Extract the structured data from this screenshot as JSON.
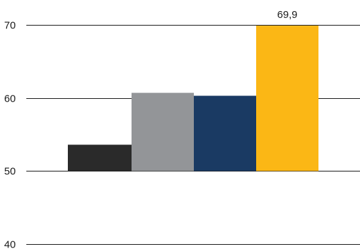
{
  "chart_data": {
    "type": "bar",
    "categories": [
      "",
      "",
      "",
      ""
    ],
    "values": [
      53.6,
      60.7,
      60.3,
      69.9
    ],
    "colors": [
      "#2a2a2a",
      "#939598",
      "#1a3a63",
      "#fbb715"
    ],
    "data_labels": [
      "",
      "",
      "",
      "69,9"
    ],
    "yticks": [
      {
        "value": 40,
        "label": "40"
      },
      {
        "value": 50,
        "label": "50"
      },
      {
        "value": 60,
        "label": "60"
      },
      {
        "value": 70,
        "label": "70"
      }
    ],
    "ylim": [
      40,
      72
    ],
    "title": "",
    "xlabel": "",
    "ylabel": "",
    "grid": true,
    "legend": "none"
  }
}
